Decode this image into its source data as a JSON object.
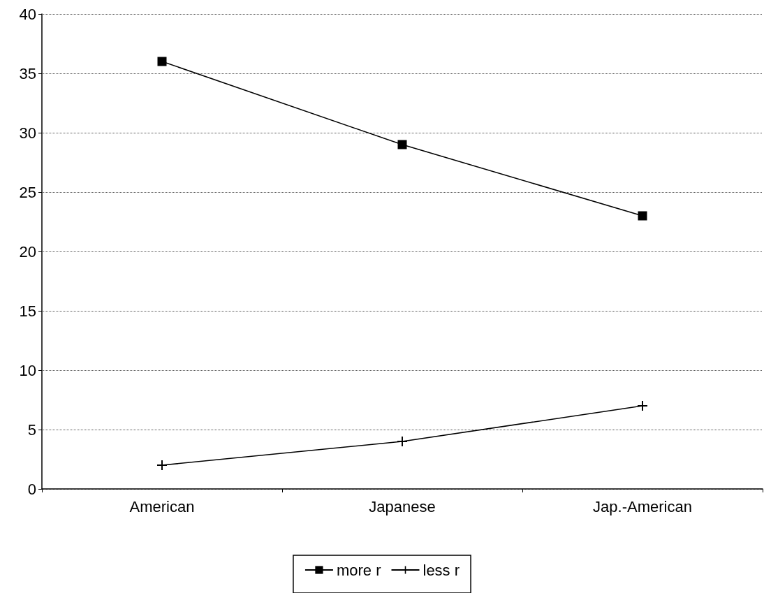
{
  "chart_data": {
    "type": "line",
    "categories": [
      "American",
      "Japanese",
      "Jap.-American"
    ],
    "series": [
      {
        "name": "more r",
        "color": "#000000",
        "values": [
          36,
          29,
          23
        ],
        "marker": "square"
      },
      {
        "name": "less r",
        "color": "#000000",
        "values": [
          2,
          4,
          7
        ],
        "marker": "cross"
      }
    ],
    "ylim": [
      0,
      40
    ],
    "yticks": [
      0,
      5,
      10,
      15,
      20,
      25,
      30,
      35,
      40
    ],
    "grid": "y",
    "legend": "bottom",
    "line_style": "solid"
  }
}
